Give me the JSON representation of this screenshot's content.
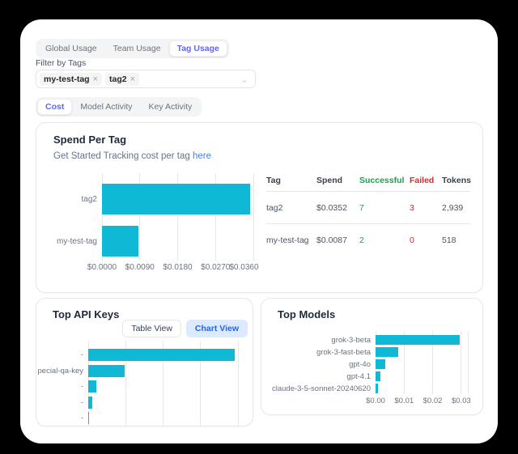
{
  "colors": {
    "accent_bar": "#0fb8d4",
    "tab_active_text": "#6366f1",
    "link": "#3b82f6",
    "success_text": "#16a34a",
    "failed_text": "#dc2626",
    "chart_view_bg": "#dbeafe",
    "chart_view_text": "#2563eb"
  },
  "primary_tabs": {
    "items": [
      {
        "label": "Global Usage",
        "active": false
      },
      {
        "label": "Team Usage",
        "active": false
      },
      {
        "label": "Tag Usage",
        "active": true
      }
    ]
  },
  "filter": {
    "label": "Filter by Tags",
    "selected_tags": [
      {
        "label": "my-test-tag"
      },
      {
        "label": "tag2"
      }
    ],
    "remove_icon": "×",
    "chevron_icon": "⌄"
  },
  "secondary_tabs": {
    "items": [
      {
        "label": "Cost",
        "active": true
      },
      {
        "label": "Model Activity",
        "active": false
      },
      {
        "label": "Key Activity",
        "active": false
      }
    ]
  },
  "spend_card": {
    "title": "Spend Per Tag",
    "subtitle_text": "Get Started Tracking cost per tag",
    "subtitle_link": "here",
    "table": {
      "headers": [
        "Tag",
        "Spend",
        "Successful",
        "Failed",
        "Tokens"
      ],
      "rows": [
        {
          "tag": "tag2",
          "spend": "$0.0352",
          "successful": "7",
          "failed": "3",
          "tokens": "2,939"
        },
        {
          "tag": "my-test-tag",
          "spend": "$0.0087",
          "successful": "2",
          "failed": "0",
          "tokens": "518"
        }
      ]
    }
  },
  "top_api_keys_card": {
    "title": "Top API Keys",
    "table_view_label": "Table View",
    "chart_view_label": "Chart View"
  },
  "top_models_card": {
    "title": "Top Models"
  },
  "chart_data": [
    {
      "id": "spend_per_tag",
      "type": "bar",
      "orientation": "horizontal",
      "title": "Spend Per Tag",
      "categories": [
        "tag2",
        "my-test-tag"
      ],
      "values": [
        0.0352,
        0.0087
      ],
      "xlim": [
        0,
        0.036
      ],
      "tick_values": [
        0,
        0.009,
        0.018,
        0.027,
        0.036
      ],
      "tick_labels": [
        "$0.0000",
        "$0.0090",
        "$0.0180",
        "$0.0270",
        "$0.0360"
      ],
      "bar_color": "#0fb8d4",
      "grid": true
    },
    {
      "id": "top_api_keys",
      "type": "bar",
      "orientation": "horizontal",
      "title": "Top API Keys",
      "categories": [
        "-",
        "pecial-qa-key",
        "-",
        "-",
        "-"
      ],
      "values": [
        0.0352,
        0.0087,
        0.0019,
        0.0009,
        0.0001
      ],
      "xlim": [
        0,
        0.036
      ],
      "tick_values": [
        0,
        0.009,
        0.018,
        0.027,
        0.036
      ],
      "tick_labels": null,
      "bar_color": "#0fb8d4",
      "grid": true
    },
    {
      "id": "top_models",
      "type": "bar",
      "orientation": "horizontal",
      "title": "Top Models",
      "categories": [
        "grok-3-beta",
        "grok-3-fast-beta",
        "gpt-4o",
        "gpt-4.1",
        "claude-3-5-sonnet-20240620"
      ],
      "values": [
        0.0295,
        0.0079,
        0.0035,
        0.0017,
        0.0008
      ],
      "xlim": [
        0,
        0.0323
      ],
      "tick_values": [
        0,
        0.01,
        0.02,
        0.03
      ],
      "tick_labels": [
        "$0.00",
        "$0.01",
        "$0.02",
        "$0.03"
      ],
      "bar_color": "#0fb8d4",
      "grid": true
    }
  ]
}
